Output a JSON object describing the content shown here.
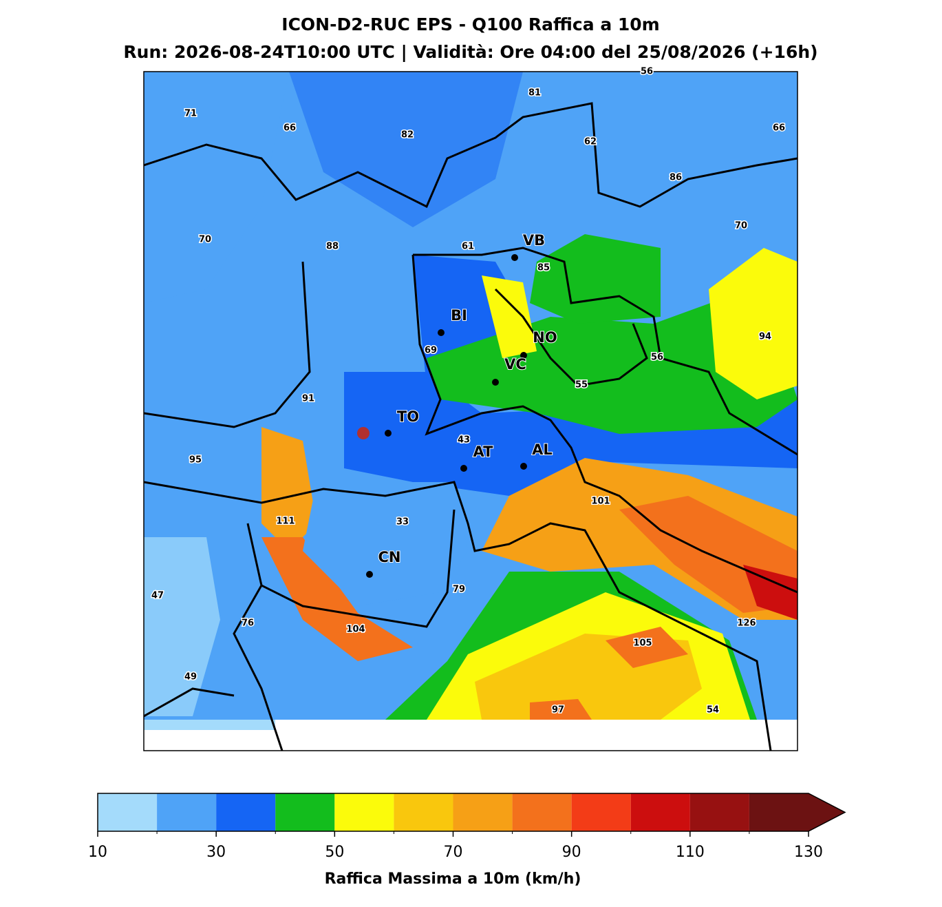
{
  "header": {
    "title": "ICON-D2-RUC EPS - Q100 Raffica a 10m",
    "subtitle": "Run: 2026-08-24T10:00 UTC | Validità: Ore 04:00 del 25/08/2026 (+16h)"
  },
  "map": {
    "value_labels": [
      56,
      81,
      71,
      66,
      66,
      82,
      62,
      86,
      70,
      70,
      88,
      61,
      85,
      94,
      56,
      69,
      55,
      91,
      43,
      95,
      101,
      111,
      33,
      79,
      47,
      76,
      104,
      126,
      105,
      49,
      97,
      54
    ],
    "cities": [
      "VB",
      "BI",
      "NO",
      "VC",
      "TO",
      "AT",
      "AL",
      "CN"
    ]
  },
  "colorbar": {
    "levels": [
      10,
      20,
      30,
      40,
      50,
      60,
      70,
      80,
      90,
      100,
      110,
      120,
      130
    ],
    "colors": [
      "#a4dbfb",
      "#4fa3f7",
      "#1565f4",
      "#13bd1d",
      "#fbfb0b",
      "#f9c70d",
      "#f6a016",
      "#f3711c",
      "#f33c17",
      "#cc0e0e",
      "#971111",
      "#6c1212"
    ],
    "extend_color": "#6c1212",
    "ticks": [
      10,
      30,
      50,
      70,
      90,
      110,
      130
    ],
    "label": "Raffica Massima a 10m (km/h)"
  }
}
